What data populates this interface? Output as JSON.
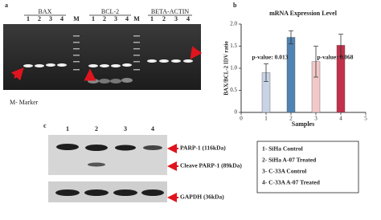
{
  "panel_a": {
    "label": "a",
    "groups": [
      {
        "name": "BAX",
        "lanes": [
          "1",
          "2",
          "3",
          "4",
          "M"
        ]
      },
      {
        "name": "BCL-2",
        "lanes": [
          "1",
          "2",
          "3",
          "4",
          "M"
        ]
      },
      {
        "name": "BETA-ACTIN",
        "lanes": [
          "1",
          "2",
          "3",
          "4"
        ]
      }
    ],
    "note": "M- Marker"
  },
  "chart_data": {
    "type": "bar",
    "panel_label": "b",
    "title": "mRNA Expression Level",
    "x_label": "Samples",
    "y_label": "BAX/BCL-2 IDV ratio",
    "x": [
      1,
      2,
      3,
      4
    ],
    "values": [
      0.9,
      1.7,
      1.15,
      1.52
    ],
    "errors": [
      0.2,
      0.15,
      0.35,
      0.25
    ],
    "colors": [
      "#c9d3e6",
      "#4f83b3",
      "#f2c9c9",
      "#c2304a"
    ],
    "xlim": [
      0,
      5
    ],
    "xticks": [
      0,
      1,
      2,
      3,
      4,
      5
    ],
    "ylim": [
      0,
      2
    ],
    "yticks": [
      0,
      0.5,
      {
        "value": 1,
        "label": "1.0"
      },
      1.5,
      {
        "value": 2,
        "label": "2.0"
      }
    ],
    "annotations": [
      "p-value: 0.013",
      "p-value: 0.068"
    ]
  },
  "panel_c": {
    "label": "c",
    "lanes": [
      "1",
      "2",
      "3",
      "4"
    ],
    "bands": [
      "PARP-1 (116kDa)",
      "Cleave PARP-1 (89kDa)",
      "GAPDH (36kDa)"
    ],
    "legend": [
      "1- SiHa Control",
      "2- SiHa A-07 Treated",
      "3- C-33A Control",
      "4- C-33A A-07 Treated"
    ]
  }
}
